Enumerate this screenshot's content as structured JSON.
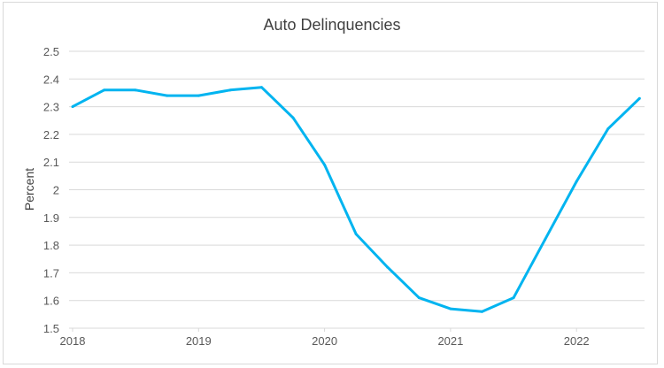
{
  "chart_data": {
    "type": "line",
    "title": "Auto Delinquencies",
    "xlabel": "",
    "ylabel": "Percent",
    "xlim": [
      2018,
      2022.5
    ],
    "ylim": [
      1.5,
      2.5
    ],
    "x_ticks": [
      "2018",
      "2019",
      "2020",
      "2021",
      "2022"
    ],
    "y_ticks": [
      "1.5",
      "1.6",
      "1.7",
      "1.8",
      "1.9",
      "2",
      "2.1",
      "2.2",
      "2.3",
      "2.4",
      "2.5"
    ],
    "grid": "horizontal",
    "color": "#00b4f0",
    "series": [
      {
        "x": [
          2018.0,
          2018.25,
          2018.5,
          2018.75,
          2019.0,
          2019.25,
          2019.5,
          2019.75,
          2020.0,
          2020.25,
          2020.5,
          2020.75,
          2021.0,
          2021.25,
          2021.5,
          2021.75,
          2022.0,
          2022.25,
          2022.5
        ],
        "values": [
          2.3,
          2.36,
          2.36,
          2.34,
          2.34,
          2.36,
          2.37,
          2.26,
          2.09,
          1.84,
          1.72,
          1.61,
          1.57,
          1.56,
          1.61,
          1.82,
          2.03,
          2.22,
          2.33
        ]
      }
    ]
  }
}
